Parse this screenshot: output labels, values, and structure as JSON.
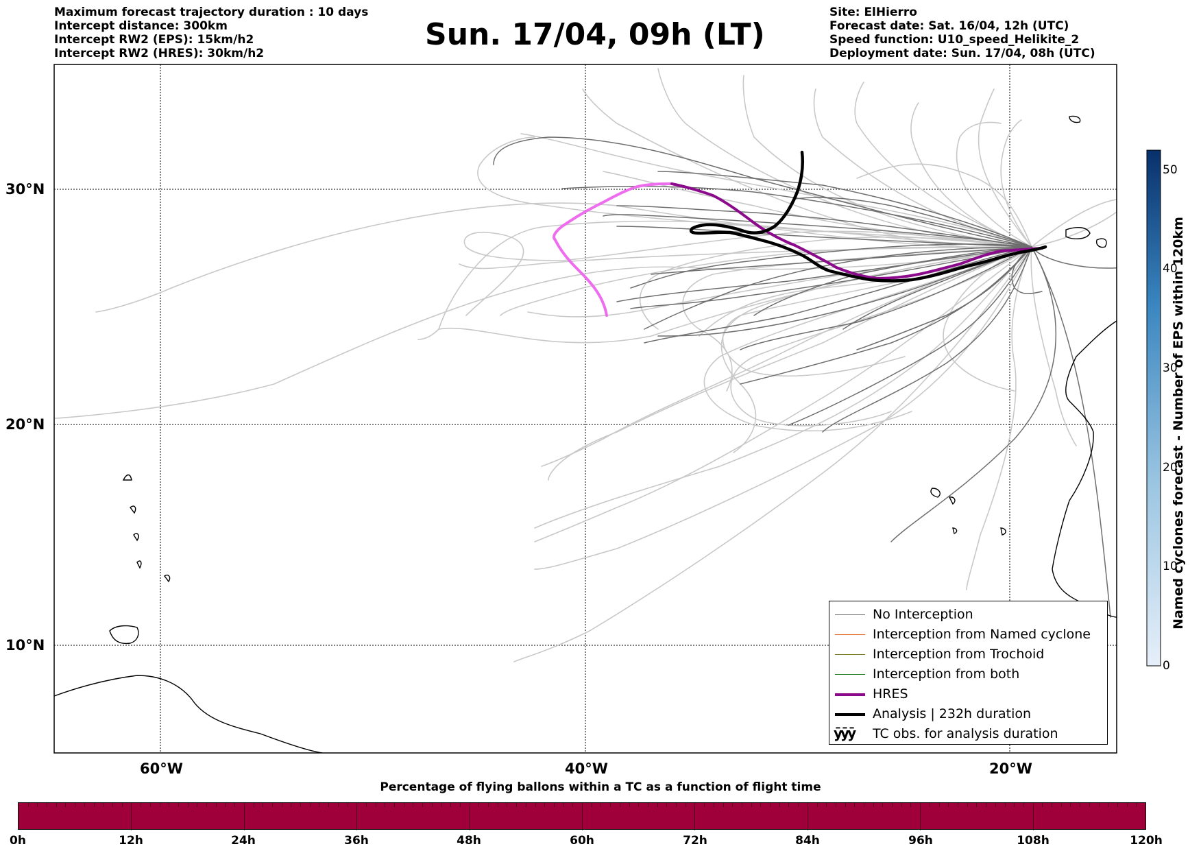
{
  "header": {
    "left": [
      "Maximum forecast trajectory duration : 10 days",
      "Intercept distance: 300km",
      "Intercept RW2 (EPS):  15km/h2",
      "Intercept RW2 (HRES): 30km/h2"
    ],
    "right": [
      "Site: ElHierro",
      "Forecast date: Sat. 16/04, 12h (UTC)",
      "Speed function: U10_speed_Helikite_2",
      "Deployment date: Sun. 17/04, 08h (UTC)"
    ],
    "title": "Sun. 17/04, 09h (LT)"
  },
  "map": {
    "lon_range": [
      -65,
      -15
    ],
    "lat_range": [
      5,
      34.4
    ],
    "lat_labels": [
      "30°N",
      "20°N",
      "10°N"
    ],
    "lon_labels": [
      "60°W",
      "40°W",
      "20°W"
    ],
    "colors": {
      "no_interception": "#6e6e6e",
      "eps_light": "#c8c8c8",
      "hres": "#8b0a8b",
      "hres_light": "#ee6cee",
      "analysis": "#000000"
    }
  },
  "legend": {
    "items": [
      {
        "label": "No Interception",
        "color": "#6e6e6e",
        "width": 1.5
      },
      {
        "label": "Interception from Named cyclone",
        "color": "#e8601c",
        "width": 1.5
      },
      {
        "label": "Interception from Trochoid",
        "color": "#7a7a1c",
        "width": 1.5
      },
      {
        "label": "Interception from both",
        "color": "#1e7a1e",
        "width": 1.5
      },
      {
        "label": "HRES",
        "color": "#8b0a8b",
        "width": 4
      },
      {
        "label": "Analysis | 232h duration",
        "color": "#000000",
        "width": 4
      }
    ],
    "tc_obs": {
      "symbol": "ӯӯӯ",
      "label": "TC obs. for analysis duration"
    }
  },
  "timeline": {
    "title": "Percentage of flying ballons within a TC as a function of flight time",
    "color": "#a0003a",
    "ticks": [
      "0h",
      "12h",
      "24h",
      "36h",
      "48h",
      "60h",
      "72h",
      "84h",
      "96h",
      "108h",
      "120h"
    ]
  },
  "colorbar": {
    "label": "Named cyclones forecast - Number of EPS within 120km",
    "ticks": [
      "0",
      "10",
      "20",
      "30",
      "40",
      "50"
    ],
    "range": [
      0,
      52
    ]
  }
}
